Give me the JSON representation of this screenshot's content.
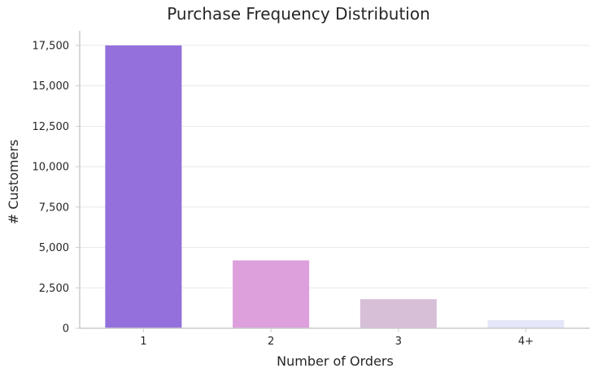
{
  "chart_data": {
    "type": "bar",
    "title": "Purchase Frequency Distribution",
    "xlabel": "Number of Orders",
    "ylabel": "# Customers",
    "categories": [
      "1",
      "2",
      "3",
      "4+"
    ],
    "values": [
      17500,
      4200,
      1800,
      500
    ],
    "ylim": [
      0,
      18400
    ],
    "yticks": [
      0,
      2500,
      5000,
      7500,
      10000,
      12500,
      15000,
      17500
    ],
    "ytick_labels": [
      "0",
      "2,500",
      "5,000",
      "7,500",
      "10,000",
      "12,500",
      "15,000",
      "17,500"
    ],
    "grid": "horizontal",
    "colors": [
      "#9370DB",
      "#DDA0DD",
      "#D8BFD8",
      "#E6E6FA"
    ]
  }
}
